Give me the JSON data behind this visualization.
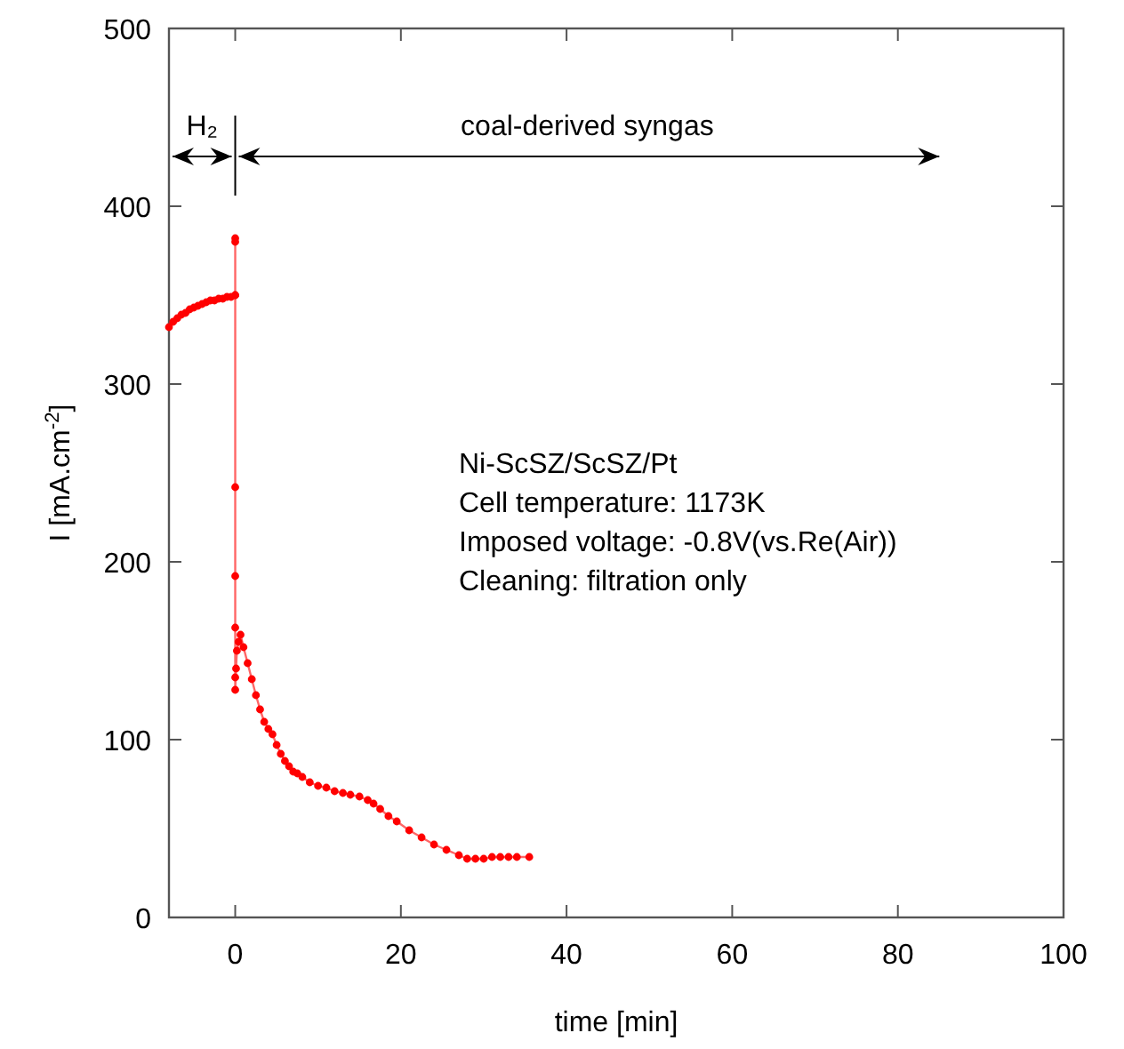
{
  "chart_data": {
    "type": "line",
    "xlabel": "time [min]",
    "ylabel": "I [mA.cm$^{-2}$]",
    "xlim": [
      -8,
      100
    ],
    "xticks": [
      0,
      20,
      40,
      60,
      80,
      100
    ],
    "ylim": [
      0,
      500
    ],
    "yticks": [
      0,
      100,
      200,
      300,
      400,
      500
    ],
    "grid": false,
    "marker": "circle",
    "line_style": "solid",
    "series": [
      {
        "color": "#ff0000",
        "x": [
          -8,
          -7.5,
          -7,
          -6.5,
          -6,
          -5.5,
          -5,
          -4.5,
          -4,
          -3.5,
          -3,
          -2.5,
          -2,
          -1.5,
          -1,
          -0.5,
          0,
          0,
          0,
          0,
          0,
          0,
          0,
          0,
          0,
          0.1,
          0.2,
          0.4,
          0.64,
          1,
          1.5,
          2,
          2.5,
          3,
          3.5,
          4,
          4.5,
          5,
          5.5,
          6,
          6.5,
          7,
          7.5,
          8.1,
          9,
          10,
          11,
          12,
          13,
          13.9,
          15,
          16,
          16.7,
          17.5,
          18.5,
          19.5,
          21,
          22.5,
          24,
          25.5,
          27,
          28,
          29,
          30,
          31,
          32,
          33,
          34,
          35.5
        ],
        "values": [
          332,
          335,
          337,
          339,
          340,
          342,
          343,
          344,
          345,
          346,
          347,
          347,
          348,
          348,
          349,
          349,
          350,
          382,
          380,
          350,
          242,
          192,
          163,
          135,
          128,
          140,
          150,
          155,
          159,
          152,
          143,
          134,
          125,
          117,
          110,
          106,
          103,
          97,
          92,
          88,
          85,
          82,
          81,
          79,
          76,
          74,
          73,
          71,
          70,
          69,
          68,
          66,
          64,
          61,
          57,
          54,
          49,
          45,
          41,
          38,
          35,
          33,
          33,
          33,
          34,
          34,
          34,
          34,
          34
        ]
      }
    ],
    "annotations": [
      "H₂",
      "coal-derived syngas",
      "Ni-ScSZ/ScSZ/Pt",
      "Cell temperature: 1173K",
      "Imposed voltage: -0.8V(vs.Re(Air))",
      "Cleaning: filtration only"
    ]
  }
}
